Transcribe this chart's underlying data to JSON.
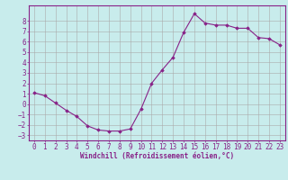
{
  "x": [
    0,
    1,
    2,
    3,
    4,
    5,
    6,
    7,
    8,
    9,
    10,
    11,
    12,
    13,
    14,
    15,
    16,
    17,
    18,
    19,
    20,
    21,
    22,
    23
  ],
  "y": [
    1.1,
    0.8,
    0.1,
    -0.6,
    -1.2,
    -2.1,
    -2.5,
    -2.6,
    -2.6,
    -2.4,
    -0.5,
    2.0,
    3.3,
    4.5,
    6.9,
    8.7,
    7.8,
    7.6,
    7.6,
    7.3,
    7.3,
    6.4,
    6.3,
    5.7
  ],
  "line_color": "#882288",
  "marker": "D",
  "marker_size": 1.8,
  "bg_color": "#c8ecec",
  "grid_color": "#aaaaaa",
  "xlabel": "Windchill (Refroidissement éolien,°C)",
  "xlabel_fontsize": 5.5,
  "tick_fontsize": 5.5,
  "xlim": [
    -0.5,
    23.5
  ],
  "ylim": [
    -3.5,
    9.5
  ],
  "yticks": [
    -3,
    -2,
    -1,
    0,
    1,
    2,
    3,
    4,
    5,
    6,
    7,
    8
  ],
  "xticks": [
    0,
    1,
    2,
    3,
    4,
    5,
    6,
    7,
    8,
    9,
    10,
    11,
    12,
    13,
    14,
    15,
    16,
    17,
    18,
    19,
    20,
    21,
    22,
    23
  ]
}
